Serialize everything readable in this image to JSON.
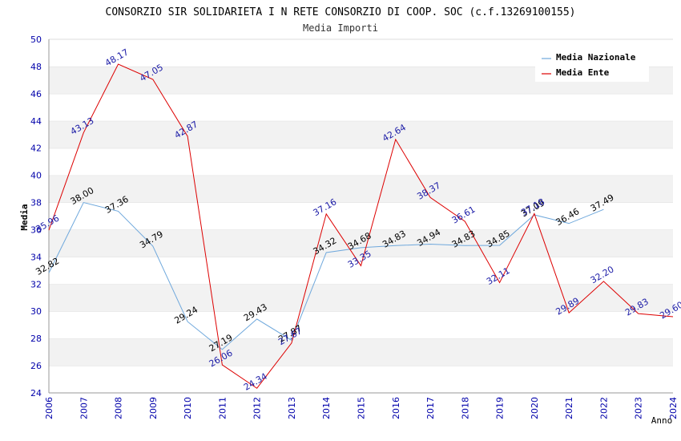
{
  "chart_data": {
    "type": "line",
    "title": "CONSORZIO SIR SOLIDARIETA I N RETE CONSORZIO DI COOP. SOC (c.f.13269100155)",
    "subtitle": "Media Importi",
    "xlabel": "Anno",
    "ylabel": "Media",
    "ylim": [
      24,
      50
    ],
    "yticks": [
      "24",
      "26",
      "28",
      "30",
      "32",
      "34",
      "36",
      "38",
      "40",
      "42",
      "44",
      "46",
      "48",
      "50"
    ],
    "categories": [
      "2006",
      "2007",
      "2008",
      "2009",
      "2010",
      "2011",
      "2012",
      "2013",
      "2014",
      "2015",
      "2016",
      "2017",
      "2018",
      "2019",
      "2020",
      "2021",
      "2022",
      "2023",
      "2024"
    ],
    "grid": "horizontal alternating bands",
    "legend_position": "top-right",
    "series": [
      {
        "name": "Media Nazionale",
        "color": "#6fa8dc",
        "values": [
          32.82,
          38.0,
          37.36,
          34.79,
          29.24,
          27.19,
          29.43,
          27.87,
          34.32,
          34.68,
          34.83,
          34.94,
          34.83,
          34.85,
          37.09,
          36.46,
          37.49,
          null,
          null
        ],
        "labels": [
          "32.82",
          "38.00",
          "37.36",
          "34.79",
          "29.24",
          "27.19",
          "29.43",
          "27.87",
          "34.32",
          "34.68",
          "34.83",
          "34.94",
          "34.83",
          "34.85",
          "37.09",
          "36.46",
          "37.49",
          "",
          ""
        ]
      },
      {
        "name": "Media Ente",
        "color": "#dd0000",
        "values": [
          35.96,
          43.13,
          48.17,
          47.05,
          42.87,
          26.06,
          24.34,
          27.67,
          37.16,
          33.35,
          42.64,
          38.37,
          36.61,
          32.11,
          37.18,
          29.89,
          32.2,
          29.83,
          29.6
        ],
        "labels": [
          "35.96",
          "43.13",
          "48.17",
          "47.05",
          "42.87",
          "26.06",
          "24.34",
          "27.67",
          "37.16",
          "33.35",
          "42.64",
          "38.37",
          "36.61",
          "32.11",
          "37.18",
          "29.89",
          "32.20",
          "29.83",
          "29.60"
        ]
      }
    ]
  }
}
